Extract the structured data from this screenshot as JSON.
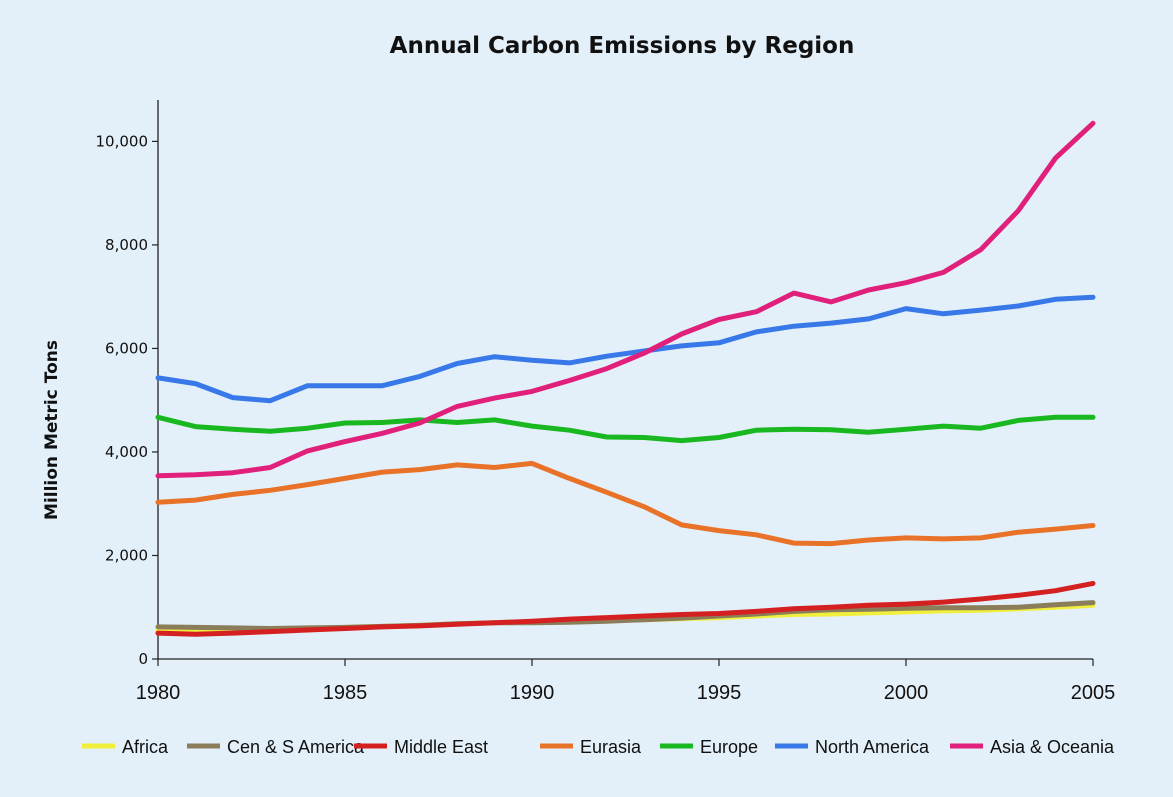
{
  "chart_data": {
    "type": "line",
    "title": "Annual Carbon Emissions by Region",
    "xlabel": "",
    "ylabel": "Million Metric Tons",
    "xlim": [
      1980,
      2005
    ],
    "ylim": [
      0,
      10800
    ],
    "x_ticks": [
      "1980",
      "1985",
      "1990",
      "1995",
      "2000",
      "2005"
    ],
    "y_ticks": [
      "0",
      "2,000",
      "4,000",
      "6,000",
      "8,000",
      "10,000"
    ],
    "y_tick_values": [
      0,
      2000,
      4000,
      6000,
      8000,
      10000
    ],
    "grid": false,
    "legend_position": "bottom",
    "x": [
      1980,
      1981,
      1982,
      1983,
      1984,
      1985,
      1986,
      1987,
      1988,
      1989,
      1990,
      1991,
      1992,
      1993,
      1994,
      1995,
      1996,
      1997,
      1998,
      1999,
      2000,
      2001,
      2002,
      2003,
      2004,
      2005
    ],
    "series": [
      {
        "name": "Africa",
        "color": "#f0f03c",
        "values": [
          560,
          560,
          570,
          580,
          590,
          610,
          630,
          650,
          680,
          700,
          720,
          740,
          750,
          760,
          780,
          800,
          830,
          860,
          870,
          890,
          910,
          930,
          940,
          970,
          1000,
          1040
        ]
      },
      {
        "name": "Cen & S America",
        "color": "#8b7d5a",
        "values": [
          620,
          610,
          600,
          590,
          600,
          610,
          630,
          650,
          680,
          700,
          700,
          710,
          730,
          760,
          790,
          830,
          870,
          920,
          950,
          960,
          980,
          990,
          990,
          1000,
          1050,
          1090
        ]
      },
      {
        "name": "Middle East",
        "color": "#d42020",
        "values": [
          500,
          480,
          500,
          530,
          560,
          590,
          620,
          640,
          670,
          700,
          730,
          770,
          800,
          830,
          860,
          880,
          920,
          970,
          1000,
          1040,
          1060,
          1100,
          1160,
          1230,
          1320,
          1460
        ]
      },
      {
        "name": "Eurasia",
        "color": "#e87228",
        "values": [
          3030,
          3070,
          3180,
          3260,
          3370,
          3490,
          3610,
          3660,
          3750,
          3700,
          3780,
          3490,
          3220,
          2940,
          2590,
          2480,
          2400,
          2240,
          2230,
          2300,
          2340,
          2320,
          2340,
          2450,
          2510,
          2580
        ]
      },
      {
        "name": "Europe",
        "color": "#19b820",
        "values": [
          4670,
          4490,
          4440,
          4400,
          4460,
          4560,
          4570,
          4620,
          4570,
          4620,
          4500,
          4420,
          4290,
          4280,
          4220,
          4280,
          4420,
          4440,
          4430,
          4380,
          4440,
          4500,
          4460,
          4610,
          4670,
          4670
        ]
      },
      {
        "name": "North America",
        "color": "#3878e8",
        "values": [
          5430,
          5320,
          5050,
          4990,
          5280,
          5280,
          5280,
          5460,
          5710,
          5840,
          5770,
          5720,
          5850,
          5950,
          6050,
          6110,
          6320,
          6430,
          6490,
          6570,
          6770,
          6670,
          6740,
          6820,
          6950,
          6990
        ]
      },
      {
        "name": "Asia & Oceania",
        "color": "#e0207a",
        "values": [
          3540,
          3560,
          3600,
          3700,
          4020,
          4200,
          4360,
          4560,
          4880,
          5040,
          5170,
          5380,
          5610,
          5910,
          6280,
          6560,
          6710,
          7070,
          6900,
          7130,
          7270,
          7470,
          7910,
          8660,
          9680,
          10350
        ]
      }
    ]
  }
}
